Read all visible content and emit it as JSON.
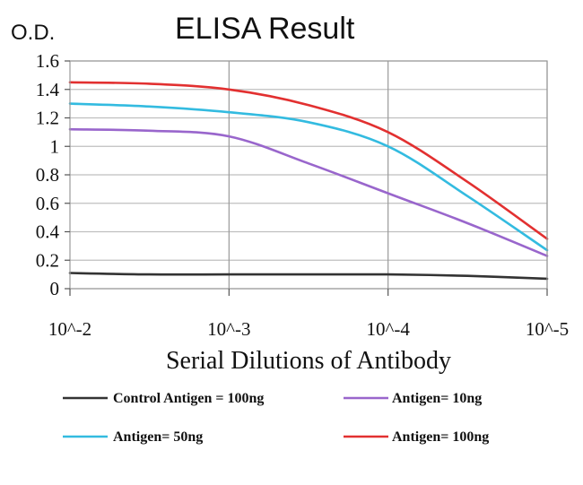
{
  "chart_data": {
    "type": "line",
    "title": "ELISA Result",
    "ylabel": "O.D.",
    "xlabel": "Serial Dilutions of Antibody",
    "categories": [
      "10^-2",
      "10^-3",
      "10^-4",
      "10^-5"
    ],
    "ylim": [
      0,
      1.6
    ],
    "yticks": [
      "0",
      "0.2",
      "0.4",
      "0.6",
      "0.8",
      "1",
      "1.2",
      "1.4",
      "1.6"
    ],
    "grid": true,
    "legend_position": "bottom",
    "series": [
      {
        "name": "Control Antigen = 100ng",
        "color": "#333333",
        "x": [
          0,
          0.5,
          1,
          1.5,
          2,
          2.5,
          3
        ],
        "values": [
          0.11,
          0.1,
          0.1,
          0.1,
          0.1,
          0.09,
          0.07
        ]
      },
      {
        "name": "Antigen= 10ng",
        "color": "#9966cc",
        "x": [
          0,
          0.5,
          1,
          1.5,
          2,
          2.5,
          3
        ],
        "values": [
          1.12,
          1.11,
          1.07,
          0.88,
          0.67,
          0.46,
          0.23
        ]
      },
      {
        "name": "Antigen= 50ng",
        "color": "#33bbe0",
        "x": [
          0,
          0.5,
          1,
          1.5,
          2,
          2.5,
          3
        ],
        "values": [
          1.3,
          1.28,
          1.24,
          1.17,
          1.0,
          0.65,
          0.27
        ]
      },
      {
        "name": "Antigen= 100ng",
        "color": "#e23030",
        "x": [
          0,
          0.5,
          1,
          1.5,
          2,
          2.5,
          3
        ],
        "values": [
          1.45,
          1.44,
          1.4,
          1.29,
          1.1,
          0.75,
          0.35
        ]
      }
    ]
  }
}
